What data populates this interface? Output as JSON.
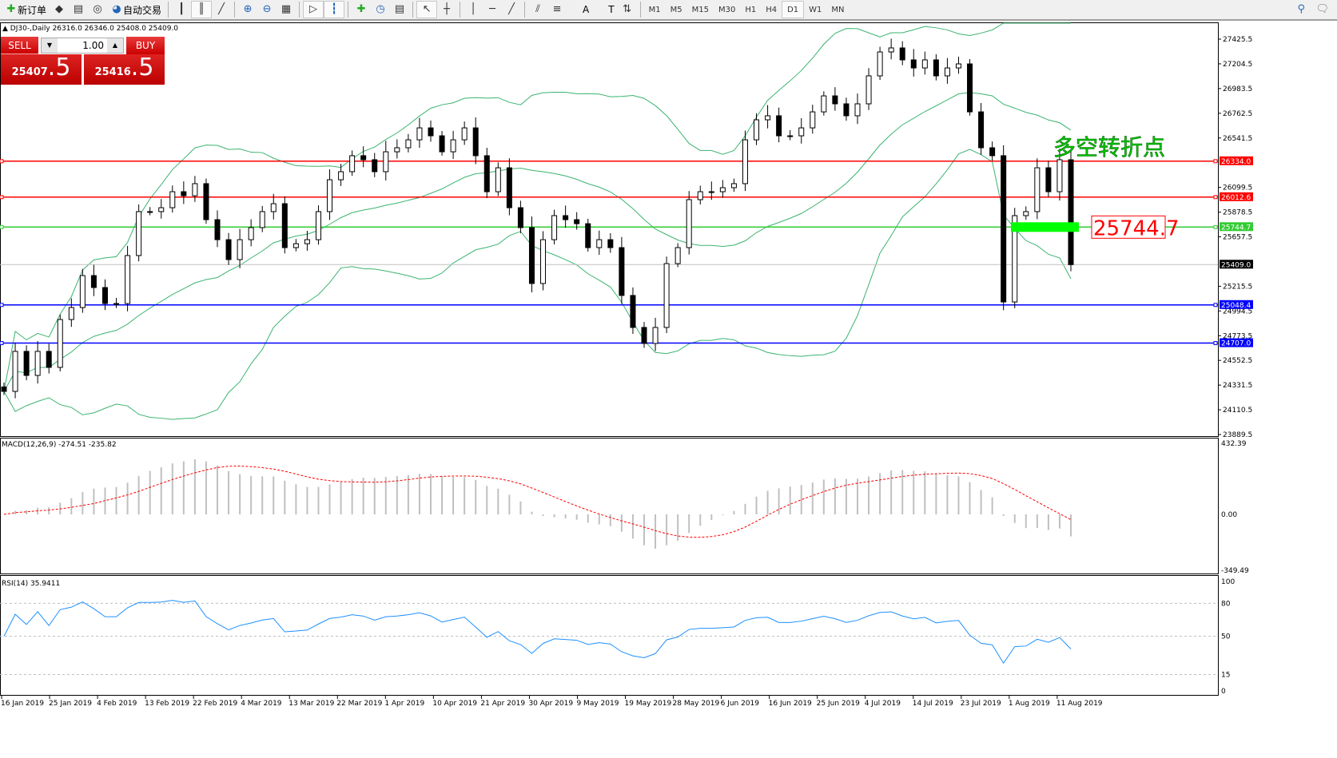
{
  "toolbar": {
    "items": [
      {
        "icon": "new-order-icon",
        "label": "新订单"
      },
      {
        "icon": "market-watch-icon",
        "label": ""
      },
      {
        "icon": "navigator-icon",
        "label": ""
      },
      {
        "icon": "signals-icon",
        "label": ""
      },
      {
        "icon": "auto-trading-icon",
        "label": "自动交易"
      },
      {
        "icon": "bar-chart-icon",
        "label": ""
      },
      {
        "icon": "candlestick-icon",
        "label": ""
      },
      {
        "icon": "line-chart-icon",
        "label": ""
      },
      {
        "icon": "zoom-in-icon",
        "label": ""
      },
      {
        "icon": "zoom-out-icon",
        "label": ""
      },
      {
        "icon": "tile-windows-icon",
        "label": ""
      },
      {
        "icon": "chart-shift-icon",
        "label": ""
      },
      {
        "icon": "autoscroll-icon",
        "label": ""
      },
      {
        "icon": "indicators-icon",
        "label": ""
      },
      {
        "icon": "periods-icon",
        "label": ""
      },
      {
        "icon": "templates-icon",
        "label": ""
      },
      {
        "icon": "cursor-icon",
        "label": ""
      },
      {
        "icon": "crosshair-icon",
        "label": ""
      },
      {
        "icon": "vertical-line-icon",
        "label": ""
      },
      {
        "icon": "horizontal-line-icon",
        "label": ""
      },
      {
        "icon": "trendline-icon",
        "label": ""
      },
      {
        "icon": "equidistant-channel-icon",
        "label": ""
      },
      {
        "icon": "fibonacci-icon",
        "label": ""
      },
      {
        "icon": "text-icon",
        "label": "A"
      },
      {
        "icon": "text-label-icon",
        "label": "T"
      },
      {
        "icon": "arrows-icon",
        "label": ""
      }
    ],
    "timeframes": [
      "M1",
      "M5",
      "M15",
      "M30",
      "H1",
      "H4",
      "D1",
      "W1",
      "MN"
    ],
    "active_timeframe": "D1"
  },
  "chart_info": "DJ30-,Daily  26316.0 26346.0 25408.0 25409.0",
  "one_click": {
    "sell_label": "SELL",
    "buy_label": "BUY",
    "lots": "1.00",
    "sell_main": "25407",
    "sell_frac": ".5",
    "buy_main": "25416",
    "buy_frac": ".5"
  },
  "price_axis": [
    "27425.5",
    "27204.5",
    "26983.5",
    "26762.5",
    "26541.5",
    "26099.5",
    "25878.5",
    "25657.5",
    "25215.5",
    "24994.5",
    "24773.5",
    "24552.5",
    "24331.5",
    "24110.5",
    "23889.5"
  ],
  "hlines": [
    {
      "price": 26334.0,
      "label": "26334.0",
      "color": "#ff0000"
    },
    {
      "price": 26012.6,
      "label": "26012.6",
      "color": "#ff0000"
    },
    {
      "price": 25744.7,
      "label": "25744.7",
      "color": "#33cc33"
    },
    {
      "price": 25409.0,
      "label": "25409.0",
      "color": "#000000"
    },
    {
      "price": 25048.4,
      "label": "25048.4",
      "color": "#0000ff"
    },
    {
      "price": 24707.0,
      "label": "24707.0",
      "color": "#0000ff"
    }
  ],
  "annotation": {
    "title": "多空转折点",
    "level_label": "25744.7",
    "title_color": "#00cc00",
    "label_color": "#ff0000"
  },
  "macd": {
    "label": "MACD(12,26,9) -274.51 -235.82",
    "axis": [
      "432.39",
      "0.00",
      "-349.49"
    ]
  },
  "rsi": {
    "label": "RSI(14) 35.9411",
    "axis": [
      "100",
      "80",
      "50",
      "15",
      "0"
    ]
  },
  "dates": [
    "16 Jan 2019",
    "25 Jan 2019",
    "4 Feb 2019",
    "13 Feb 2019",
    "22 Feb 2019",
    "4 Mar 2019",
    "13 Mar 2019",
    "22 Mar 2019",
    "1 Apr 2019",
    "10 Apr 2019",
    "21 Apr 2019",
    "30 Apr 2019",
    "9 May 2019",
    "19 May 2019",
    "28 May 2019",
    "6 Jun 2019",
    "16 Jun 2019",
    "25 Jun 2019",
    "4 Jul 2019",
    "14 Jul 2019",
    "23 Jul 2019",
    "1 Aug 2019",
    "11 Aug 2019"
  ],
  "chart_data": {
    "type": "candlestick",
    "symbol": "DJ30-",
    "timeframe": "Daily",
    "ylim": [
      23889.5,
      27425.5
    ],
    "closes": [
      24275,
      24633,
      24418,
      24633,
      24490,
      24918,
      25025,
      25311,
      25204,
      25061,
      25061,
      25490,
      25883,
      25883,
      25918,
      26061,
      26025,
      26133,
      25811,
      25632,
      25454,
      25632,
      25740,
      25883,
      25954,
      25561,
      25596,
      25632,
      25883,
      26168,
      26240,
      26383,
      26347,
      26240,
      26418,
      26454,
      26525,
      26632,
      26561,
      26418,
      26525,
      26632,
      26383,
      26061,
      26275,
      25918,
      25740,
      25240,
      25632,
      25847,
      25811,
      25775,
      25561,
      25632,
      25561,
      25133,
      24847,
      24704,
      24847,
      25418,
      25561,
      25990,
      26061,
      26061,
      26097,
      26133,
      26525,
      26704,
      26740,
      26561,
      26561,
      26632,
      26775,
      26918,
      26847,
      26740,
      26847,
      27097,
      27311,
      27347,
      27240,
      27168,
      27240,
      27097,
      27168,
      27204,
      26775,
      26454,
      26383,
      25075,
      25847,
      25883,
      26275,
      26061,
      26347,
      25409
    ],
    "indicators": [
      "Bollinger Bands",
      "MACD(12,26,9)",
      "RSI(14)"
    ]
  }
}
